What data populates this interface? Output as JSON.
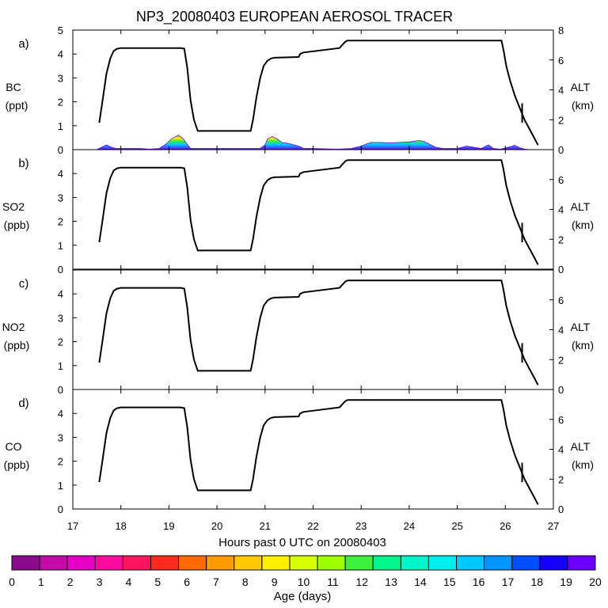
{
  "chart_data": {
    "type": "line",
    "title": "NP3_20080403 EUROPEAN AEROSOL TRACER",
    "xlabel": "Hours past 0 UTC on 20080403",
    "xlim": [
      17,
      27
    ],
    "x_ticks": [
      17,
      18,
      19,
      20,
      21,
      22,
      23,
      24,
      25,
      26,
      27
    ],
    "right_axis": {
      "label": "ALT",
      "unit": "(km)",
      "ylim": [
        0,
        8
      ],
      "ticks": [
        0,
        2,
        4,
        6,
        8
      ]
    },
    "altitude_profile": {
      "name": "ALT (km)",
      "x": [
        17.55,
        17.62,
        17.7,
        17.78,
        17.85,
        17.92,
        18.0,
        19.25,
        19.32,
        19.38,
        19.45,
        19.52,
        19.6,
        20.7,
        20.75,
        20.82,
        20.9,
        20.97,
        21.05,
        21.12,
        21.2,
        21.7,
        21.73,
        21.8,
        22.55,
        22.62,
        22.68,
        22.72,
        25.92,
        25.96,
        26.02,
        26.1,
        26.2,
        26.3,
        26.4,
        26.5,
        26.6,
        26.68
      ],
      "y": [
        1.8,
        3.3,
        5.1,
        6.1,
        6.6,
        6.75,
        6.8,
        6.8,
        6.75,
        5.5,
        3.3,
        2.0,
        1.25,
        1.25,
        2.0,
        3.5,
        4.8,
        5.6,
        5.95,
        6.1,
        6.15,
        6.2,
        6.4,
        6.5,
        6.8,
        7.05,
        7.25,
        7.3,
        7.3,
        6.7,
        5.6,
        4.6,
        3.6,
        2.8,
        2.0,
        1.4,
        0.8,
        0.3
      ]
    },
    "panels": [
      {
        "letter": "a)",
        "species": "BC",
        "unit": "(ppt)",
        "ylim": [
          0,
          5
        ],
        "ticks": [
          0,
          1,
          2,
          3,
          4,
          5
        ],
        "tracer": {
          "x": [
            17.5,
            17.6,
            17.7,
            17.8,
            17.9,
            18.0,
            18.2,
            18.4,
            18.6,
            18.8,
            18.95,
            19.05,
            19.15,
            19.2,
            19.3,
            19.35,
            19.45,
            19.6,
            20.0,
            20.5,
            20.9,
            21.0,
            21.05,
            21.15,
            21.25,
            21.35,
            21.5,
            21.7,
            21.8,
            22.0,
            22.5,
            22.8,
            23.0,
            23.2,
            23.4,
            23.6,
            23.8,
            24.0,
            24.2,
            24.3,
            24.45,
            24.55,
            24.7,
            25.0,
            25.2,
            25.5,
            25.6,
            25.65,
            25.75,
            25.9,
            26.1,
            26.2,
            26.3,
            26.4,
            26.5
          ],
          "y": [
            0.0,
            0.1,
            0.2,
            0.1,
            0.05,
            0.05,
            0.05,
            0.05,
            0.02,
            0.05,
            0.25,
            0.45,
            0.55,
            0.6,
            0.45,
            0.3,
            0.05,
            0.05,
            0.05,
            0.05,
            0.05,
            0.2,
            0.45,
            0.55,
            0.45,
            0.3,
            0.25,
            0.15,
            0.05,
            0.05,
            0.02,
            0.05,
            0.15,
            0.3,
            0.3,
            0.28,
            0.3,
            0.32,
            0.38,
            0.35,
            0.2,
            0.1,
            0.05,
            0.05,
            0.15,
            0.05,
            0.15,
            0.2,
            0.05,
            0.02,
            0.12,
            0.18,
            0.08,
            0.02,
            0.0
          ]
        }
      },
      {
        "letter": "b)",
        "species": "SO2",
        "unit": "(ppb)",
        "ylim": [
          0,
          5
        ],
        "ticks": [
          0,
          1,
          2,
          3,
          4
        ]
      },
      {
        "letter": "c)",
        "species": "NO2",
        "unit": "(ppb)",
        "ylim": [
          0,
          5
        ],
        "ticks": [
          0,
          1,
          2,
          3,
          4
        ]
      },
      {
        "letter": "d)",
        "species": "CO",
        "unit": "(ppb)",
        "ylim": [
          0,
          5
        ],
        "ticks": [
          0,
          1,
          2,
          3,
          4
        ]
      }
    ],
    "colorbar": {
      "label": "Age (days)",
      "ticks": [
        "0",
        "1",
        "2",
        "3",
        "4",
        "5",
        "6",
        "7",
        "8",
        "9",
        "10",
        "11",
        "12",
        "13",
        "14",
        "15",
        "16",
        "17",
        "18",
        "19",
        "20"
      ],
      "colors": [
        "#8b0a8b",
        "#c40aa8",
        "#e600c8",
        "#ff0aa0",
        "#ff1460",
        "#ff2a1e",
        "#ff6a00",
        "#ff9a00",
        "#ffc800",
        "#fff000",
        "#d8ff00",
        "#9cff00",
        "#3cf03c",
        "#00f58c",
        "#00f5c8",
        "#00f0f0",
        "#00c8ff",
        "#0096ff",
        "#0050ff",
        "#1400ff",
        "#6e00ff"
      ]
    }
  }
}
